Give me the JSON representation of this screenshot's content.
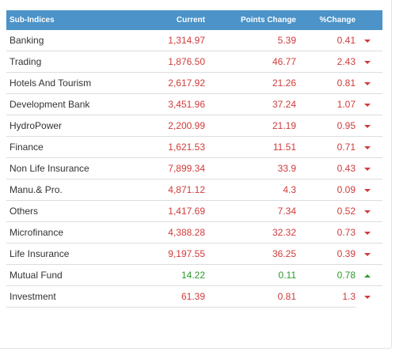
{
  "colors": {
    "header_bg": "#4b93c8",
    "negative": "#d03a3a",
    "positive": "#2c9a2c"
  },
  "table": {
    "headers": {
      "name": "Sub-Indices",
      "current": "Current",
      "points_change": "Points Change",
      "percent_change": "%Change"
    },
    "rows": [
      {
        "name": "Banking",
        "current": "1,314.97",
        "points": "5.39",
        "percent": "0.41",
        "direction": "down"
      },
      {
        "name": "Trading",
        "current": "1,876.50",
        "points": "46.77",
        "percent": "2.43",
        "direction": "down"
      },
      {
        "name": "Hotels And Tourism",
        "current": "2,617.92",
        "points": "21.26",
        "percent": "0.81",
        "direction": "down"
      },
      {
        "name": "Development Bank",
        "current": "3,451.96",
        "points": "37.24",
        "percent": "1.07",
        "direction": "down"
      },
      {
        "name": "HydroPower",
        "current": "2,200.99",
        "points": "21.19",
        "percent": "0.95",
        "direction": "down"
      },
      {
        "name": "Finance",
        "current": "1,621.53",
        "points": "11.51",
        "percent": "0.71",
        "direction": "down"
      },
      {
        "name": "Non Life Insurance",
        "current": "7,899.34",
        "points": "33.9",
        "percent": "0.43",
        "direction": "down"
      },
      {
        "name": "Manu.& Pro.",
        "current": "4,871.12",
        "points": "4.3",
        "percent": "0.09",
        "direction": "down"
      },
      {
        "name": "Others",
        "current": "1,417.69",
        "points": "7.34",
        "percent": "0.52",
        "direction": "down"
      },
      {
        "name": "Microfinance",
        "current": "4,388.28",
        "points": "32.32",
        "percent": "0.73",
        "direction": "down"
      },
      {
        "name": "Life Insurance",
        "current": "9,197.55",
        "points": "36.25",
        "percent": "0.39",
        "direction": "down"
      },
      {
        "name": "Mutual Fund",
        "current": "14.22",
        "points": "0.11",
        "percent": "0.78",
        "direction": "up"
      },
      {
        "name": "Investment",
        "current": "61.39",
        "points": "0.81",
        "percent": "1.3",
        "direction": "down"
      }
    ]
  }
}
